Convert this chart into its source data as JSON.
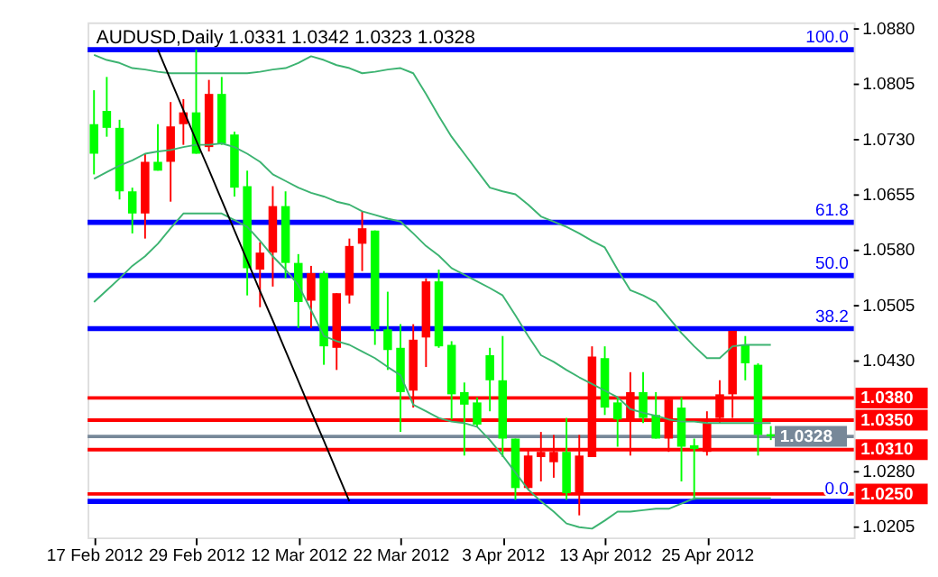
{
  "chart_data": {
    "type": "candlestick",
    "title": "AUDUSD,Daily  1.0331 1.0342 1.0323 1.0328",
    "categories": [
      "17 Feb 2012",
      null,
      null,
      null,
      null,
      null,
      null,
      null,
      "29 Feb 2012",
      null,
      null,
      null,
      null,
      null,
      null,
      null,
      "12 Mar 2012",
      null,
      null,
      null,
      null,
      null,
      null,
      null,
      "22 Mar 2012",
      null,
      null,
      null,
      null,
      null,
      null,
      null,
      "3 Apr 2012",
      null,
      null,
      null,
      null,
      null,
      null,
      null,
      "13 Apr 2012",
      null,
      null,
      null,
      null,
      null,
      null,
      null,
      "25 Apr 2012",
      null,
      null,
      null,
      null,
      null
    ],
    "ohlc": [
      [
        1.0711,
        1.0797,
        1.0683,
        1.0751
      ],
      [
        1.0746,
        1.0815,
        1.0734,
        1.0769
      ],
      [
        1.066,
        1.0757,
        1.0649,
        1.0746
      ],
      [
        1.063,
        1.0665,
        1.0603,
        1.066
      ],
      [
        1.07,
        1.0711,
        1.0596,
        1.063
      ],
      [
        1.0688,
        1.0751,
        1.0688,
        1.07
      ],
      [
        1.0748,
        1.0781,
        1.0646,
        1.07
      ],
      [
        1.0767,
        1.0785,
        1.0723,
        1.0751
      ],
      [
        1.0711,
        1.0852,
        1.0711,
        1.0767
      ],
      [
        1.0792,
        1.0811,
        1.0714,
        1.072
      ],
      [
        1.0725,
        1.0815,
        1.0723,
        1.0792
      ],
      [
        1.0665,
        1.0741,
        1.0653,
        1.0737
      ],
      [
        1.0556,
        1.0688,
        1.0519,
        1.0667
      ],
      [
        1.0577,
        1.0591,
        1.0503,
        1.0554
      ],
      [
        1.064,
        1.0667,
        1.0531,
        1.0577
      ],
      [
        1.0563,
        1.066,
        1.0542,
        1.064
      ],
      [
        1.051,
        1.0575,
        1.0475,
        1.0563
      ],
      [
        1.0549,
        1.0559,
        1.0475,
        1.0512
      ],
      [
        1.045,
        1.0552,
        1.0425,
        1.0549
      ],
      [
        1.0522,
        1.0522,
        1.0418,
        1.0448
      ],
      [
        1.0586,
        1.0596,
        1.0508,
        1.0519
      ],
      [
        1.061,
        1.0633,
        1.0552,
        1.0589
      ],
      [
        1.0473,
        1.0607,
        1.0452,
        1.0607
      ],
      [
        1.0445,
        1.0524,
        1.0418,
        1.0473
      ],
      [
        1.0388,
        1.048,
        1.0334,
        1.0448
      ],
      [
        1.0459,
        1.048,
        1.0367,
        1.039
      ],
      [
        1.0538,
        1.0542,
        1.0422,
        1.0462
      ],
      [
        1.045,
        1.0554,
        1.0448,
        1.0538
      ],
      [
        1.0385,
        1.0457,
        1.0351,
        1.0452
      ],
      [
        1.0371,
        1.0401,
        1.0302,
        1.0388
      ],
      [
        1.0344,
        1.0381,
        1.0341,
        1.0374
      ],
      [
        1.0404,
        1.0448,
        1.0362,
        1.0438
      ],
      [
        1.0325,
        1.0464,
        1.03,
        1.0404
      ],
      [
        1.0258,
        1.0325,
        1.0242,
        1.0325
      ],
      [
        1.0302,
        1.0311,
        1.0256,
        1.0258
      ],
      [
        1.0307,
        1.0334,
        1.0267,
        1.03
      ],
      [
        1.0307,
        1.033,
        1.0272,
        1.0293
      ],
      [
        1.0251,
        1.0353,
        1.0242,
        1.0307
      ],
      [
        1.0302,
        1.033,
        1.0221,
        1.0251
      ],
      [
        1.0436,
        1.045,
        1.03,
        1.03
      ],
      [
        1.0367,
        1.045,
        1.0357,
        1.0434
      ],
      [
        1.0351,
        1.0381,
        1.0314,
        1.0374
      ],
      [
        1.0388,
        1.0415,
        1.0302,
        1.0351
      ],
      [
        1.0353,
        1.0415,
        1.0346,
        1.0388
      ],
      [
        1.0325,
        1.0388,
        1.0325,
        1.0357
      ],
      [
        1.0378,
        1.0378,
        1.0307,
        1.0325
      ],
      [
        1.0314,
        1.0381,
        1.0267,
        1.0367
      ],
      [
        1.0311,
        1.0325,
        1.0242,
        1.0316
      ],
      [
        1.0346,
        1.0362,
        1.0302,
        1.0307
      ],
      [
        1.0385,
        1.0404,
        1.0346,
        1.0353
      ],
      [
        1.0471,
        1.0471,
        1.0353,
        1.0385
      ],
      [
        1.0427,
        1.0464,
        1.0404,
        1.0452
      ],
      [
        1.033,
        1.0427,
        1.0302,
        1.0425
      ],
      [
        1.0331,
        1.0342,
        1.0323,
        1.0328
      ]
    ],
    "colors": [
      "#00ff00",
      "#00ff00",
      "#00ff00",
      "#00ff00",
      "#ff0000",
      "#00ff00",
      "#ff0000",
      "#ff0000",
      "#00ff00",
      "#ff0000",
      "#00ff00",
      "#00ff00",
      "#00ff00",
      "#ff0000",
      "#ff0000",
      "#00ff00",
      "#00ff00",
      "#ff0000",
      "#00ff00",
      "#ff0000",
      "#ff0000",
      "#ff0000",
      "#00ff00",
      "#00ff00",
      "#00ff00",
      "#ff0000",
      "#ff0000",
      "#00ff00",
      "#00ff00",
      "#00ff00",
      "#00ff00",
      "#00ff00",
      "#00ff00",
      "#00ff00",
      "#ff0000",
      "#ff0000",
      "#ff0000",
      "#00ff00",
      "#ff0000",
      "#ff0000",
      "#00ff00",
      "#00ff00",
      "#ff0000",
      "#00ff00",
      "#00ff00",
      "#ff0000",
      "#00ff00",
      "#00ff00",
      "#ff0000",
      "#ff0000",
      "#ff0000",
      "#00ff00",
      "#00ff00",
      "#00ff00"
    ],
    "series": [
      {
        "type": "line",
        "color": "#3cb371",
        "values": [
          1.0845,
          1.0838,
          1.0834,
          1.0827,
          1.0825,
          1.0822,
          1.082,
          1.082,
          1.082,
          1.082,
          1.082,
          1.082,
          1.082,
          1.0822,
          1.0825,
          1.0827,
          1.0834,
          1.0843,
          1.0838,
          1.0831,
          1.0827,
          1.082,
          1.0822,
          1.0825,
          1.0827,
          1.082,
          1.0792,
          1.0762,
          1.0734,
          1.0711,
          1.0688,
          1.0665,
          1.066,
          1.0656,
          1.0642,
          1.0626,
          1.0619,
          1.0612,
          1.0603,
          1.0593,
          1.0584,
          1.0554,
          1.0526,
          1.0519,
          1.051,
          1.0489,
          1.0468,
          1.045,
          1.0434,
          1.0434,
          1.045,
          1.0452,
          1.0452,
          1.0452
        ]
      },
      {
        "type": "line",
        "color": "#3cb371",
        "values": [
          1.0677,
          1.0686,
          1.0695,
          1.0702,
          1.0711,
          1.0714,
          1.0716,
          1.072,
          1.0723,
          1.0723,
          1.0725,
          1.072,
          1.0711,
          1.07,
          1.0683,
          1.0674,
          1.0665,
          1.0658,
          1.0653,
          1.0646,
          1.0642,
          1.0633,
          1.0628,
          1.0623,
          1.0619,
          1.0603,
          1.0586,
          1.0573,
          1.0556,
          1.0547,
          1.0538,
          1.0529,
          1.0519,
          1.0492,
          1.0464,
          1.0438,
          1.0429,
          1.0418,
          1.0408,
          1.0399,
          1.039,
          1.0381,
          1.0365,
          1.036,
          1.0356,
          1.0351,
          1.0348,
          1.0348,
          1.0346,
          1.0346,
          1.0346,
          1.0346,
          1.0346,
          1.0346
        ]
      },
      {
        "type": "line",
        "color": "#3cb371",
        "values": [
          1.051,
          1.0526,
          1.0542,
          1.0559,
          1.0572,
          1.0589,
          1.061,
          1.063,
          1.063,
          1.063,
          1.063,
          1.0621,
          1.0612,
          1.0593,
          1.0572,
          1.0554,
          1.0533,
          1.0499,
          1.0464,
          1.0457,
          1.0452,
          1.0443,
          1.0434,
          1.0422,
          1.0411,
          1.0371,
          1.0362,
          1.0353,
          1.0348,
          1.0346,
          1.0341,
          1.0323,
          1.0302,
          1.0279,
          1.0256,
          1.024,
          1.0226,
          1.021,
          1.0205,
          1.0203,
          1.0214,
          1.0226,
          1.0226,
          1.0228,
          1.023,
          1.023,
          1.0237,
          1.0244,
          1.0244,
          1.0244,
          1.0244,
          1.0244,
          1.0244,
          1.0244
        ]
      },
      {
        "type": "line",
        "color": "#000000",
        "values": [
          null,
          null,
          null,
          null,
          null,
          1.0852,
          1.0811,
          1.077,
          1.0729,
          1.0689,
          1.0648,
          1.0607,
          1.0566,
          1.0525,
          1.0485,
          1.0444,
          1.0403,
          1.0362,
          1.0322,
          1.0281,
          1.024,
          null,
          null,
          null,
          null,
          null,
          null,
          null,
          null,
          null,
          null,
          null,
          null,
          null,
          null,
          null,
          null,
          null,
          null,
          null,
          null,
          null,
          null,
          null,
          null,
          null,
          null,
          null,
          null,
          null,
          null,
          null,
          null,
          null
        ]
      }
    ],
    "ylim": [
      1.0191,
      1.0889
    ],
    "yticks": [
      {
        "value": 1.088,
        "label": "1.0880"
      },
      {
        "value": 1.0805,
        "label": "1.0805"
      },
      {
        "value": 1.073,
        "label": "1.0730"
      },
      {
        "value": 1.0655,
        "label": "1.0655"
      },
      {
        "value": 1.058,
        "label": "1.0580"
      },
      {
        "value": 1.0505,
        "label": "1.0505"
      },
      {
        "value": 1.043,
        "label": "1.0430"
      },
      {
        "value": 1.028,
        "label": "1.0280"
      },
      {
        "value": 1.0205,
        "label": "1.0205"
      }
    ],
    "ref_lines": [
      {
        "axis": "y",
        "value": 1.0852,
        "color": "#0000ff"
      },
      {
        "axis": "y",
        "value": 1.0618,
        "color": "#0000ff"
      },
      {
        "axis": "y",
        "value": 1.0546,
        "color": "#0000ff"
      },
      {
        "axis": "y",
        "value": 1.0474,
        "color": "#0000ff"
      },
      {
        "axis": "y",
        "value": 1.024,
        "color": "#0000ff"
      },
      {
        "axis": "y",
        "value": 1.038,
        "label": "1.0380",
        "color": "#ff0000"
      },
      {
        "axis": "y",
        "value": 1.035,
        "label": "1.0350",
        "color": "#ff0000"
      },
      {
        "axis": "y",
        "value": 1.031,
        "label": "1.0310",
        "color": "#ff0000"
      },
      {
        "axis": "y",
        "value": 1.025,
        "label": "1.0250",
        "color": "#ff0000"
      },
      {
        "axis": "y",
        "value": 1.0328,
        "label": "1.0328",
        "color": "#778899"
      }
    ],
    "annotations": [
      {
        "text": "100.0",
        "y": 1.0852
      },
      {
        "text": "61.8",
        "y": 1.0618
      },
      {
        "text": "50.0",
        "y": 1.0546
      },
      {
        "text": "38.2",
        "y": 1.0474
      },
      {
        "text": "0.0",
        "y": 1.024
      }
    ]
  }
}
